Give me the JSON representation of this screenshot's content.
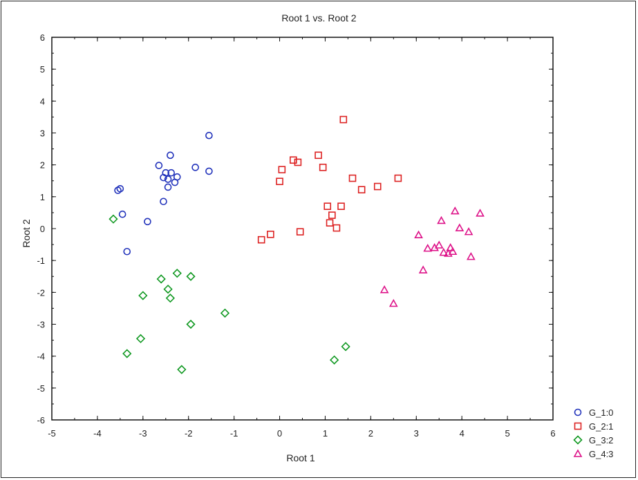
{
  "chart_data": {
    "type": "scatter",
    "title": "Root 1 vs. Root 2",
    "xlabel": "Root 1",
    "ylabel": "Root 2",
    "xlim": [
      -5,
      6
    ],
    "ylim": [
      -6,
      6
    ],
    "xticks": [
      -5,
      -4,
      -3,
      -2,
      -1,
      0,
      1,
      2,
      3,
      4,
      5,
      6
    ],
    "yticks": [
      -6,
      -5,
      -4,
      -3,
      -2,
      -1,
      0,
      1,
      2,
      3,
      4,
      5,
      6
    ],
    "grid": false,
    "legend_position": "bottom-right",
    "series": [
      {
        "name": "G_1:0",
        "marker": "circle",
        "color": "#2233bb",
        "points": [
          [
            -1.55,
            2.92
          ],
          [
            -2.4,
            2.3
          ],
          [
            -2.65,
            1.98
          ],
          [
            -1.85,
            1.92
          ],
          [
            -1.55,
            1.8
          ],
          [
            -2.5,
            1.75
          ],
          [
            -2.38,
            1.75
          ],
          [
            -2.55,
            1.6
          ],
          [
            -2.25,
            1.62
          ],
          [
            -2.45,
            1.55
          ],
          [
            -2.3,
            1.45
          ],
          [
            -2.45,
            1.3
          ],
          [
            -3.5,
            1.25
          ],
          [
            -3.55,
            1.2
          ],
          [
            -2.55,
            0.85
          ],
          [
            -3.45,
            0.45
          ],
          [
            -2.9,
            0.22
          ],
          [
            -3.35,
            -0.72
          ]
        ]
      },
      {
        "name": "G_2:1",
        "marker": "square",
        "color": "#dd2222",
        "points": [
          [
            1.4,
            3.42
          ],
          [
            0.85,
            2.3
          ],
          [
            0.3,
            2.15
          ],
          [
            0.4,
            2.08
          ],
          [
            0.95,
            1.92
          ],
          [
            0.05,
            1.85
          ],
          [
            1.6,
            1.58
          ],
          [
            2.6,
            1.58
          ],
          [
            0.0,
            1.48
          ],
          [
            2.15,
            1.32
          ],
          [
            1.8,
            1.22
          ],
          [
            1.05,
            0.7
          ],
          [
            1.35,
            0.7
          ],
          [
            1.15,
            0.42
          ],
          [
            1.1,
            0.18
          ],
          [
            1.25,
            0.02
          ],
          [
            0.45,
            -0.1
          ],
          [
            -0.2,
            -0.18
          ],
          [
            -0.4,
            -0.35
          ]
        ]
      },
      {
        "name": "G_3:2",
        "marker": "diamond",
        "color": "#119922",
        "points": [
          [
            -3.65,
            0.3
          ],
          [
            -2.25,
            -1.4
          ],
          [
            -1.95,
            -1.5
          ],
          [
            -2.6,
            -1.58
          ],
          [
            -2.45,
            -1.9
          ],
          [
            -3.0,
            -2.1
          ],
          [
            -2.4,
            -2.18
          ],
          [
            -1.2,
            -2.65
          ],
          [
            -1.95,
            -3.0
          ],
          [
            -3.05,
            -3.45
          ],
          [
            -3.35,
            -3.92
          ],
          [
            -2.15,
            -4.42
          ],
          [
            1.45,
            -3.7
          ],
          [
            1.2,
            -4.12
          ]
        ]
      },
      {
        "name": "G_4:3",
        "marker": "triangle",
        "color": "#dd1188",
        "points": [
          [
            4.4,
            0.48
          ],
          [
            3.85,
            0.55
          ],
          [
            3.55,
            0.25
          ],
          [
            3.95,
            0.02
          ],
          [
            4.15,
            -0.1
          ],
          [
            3.05,
            -0.2
          ],
          [
            3.5,
            -0.52
          ],
          [
            3.4,
            -0.6
          ],
          [
            3.25,
            -0.62
          ],
          [
            3.75,
            -0.6
          ],
          [
            3.8,
            -0.72
          ],
          [
            3.6,
            -0.75
          ],
          [
            3.7,
            -0.78
          ],
          [
            4.2,
            -0.88
          ],
          [
            3.15,
            -1.3
          ],
          [
            2.3,
            -1.92
          ],
          [
            2.5,
            -2.35
          ]
        ]
      }
    ]
  }
}
